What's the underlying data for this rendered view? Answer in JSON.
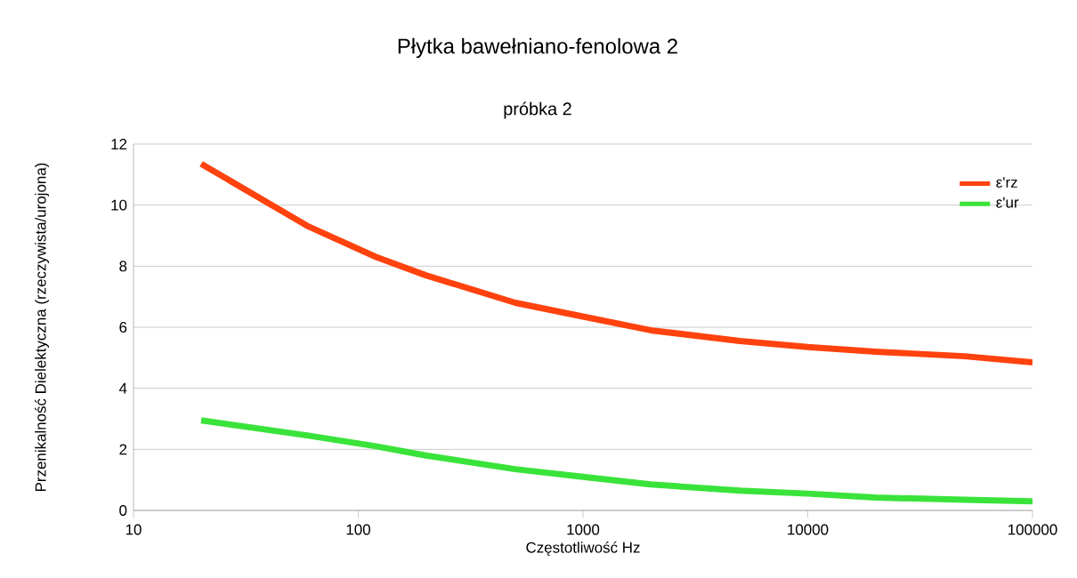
{
  "chart_data": {
    "type": "line",
    "title": "Płytka bawełniano-fenolowa 2",
    "subtitle": "próbka 2",
    "xlabel": "Częstotliwość Hz",
    "ylabel": "Przenikalność Dielektyczna (rzeczywista/urojona)",
    "x": [
      20,
      60,
      120,
      200,
      500,
      1000,
      2000,
      5000,
      10000,
      20000,
      50000,
      100000
    ],
    "series": [
      {
        "name": "ε'rz",
        "color": "#ff420e",
        "values": [
          11.35,
          9.3,
          8.3,
          7.7,
          6.8,
          6.35,
          5.9,
          5.55,
          5.35,
          5.2,
          5.05,
          4.85
        ]
      },
      {
        "name": "ε'ur",
        "color": "#3ae33a",
        "values": [
          2.95,
          2.45,
          2.1,
          1.8,
          1.35,
          1.1,
          0.85,
          0.65,
          0.55,
          0.42,
          0.35,
          0.3
        ]
      }
    ],
    "log": "x",
    "xlim": [
      10,
      100000
    ],
    "xticks": [
      10,
      100,
      1000,
      10000,
      100000
    ],
    "ylim": [
      0,
      12
    ],
    "yticks": [
      0,
      2,
      4,
      6,
      8,
      10,
      12
    ],
    "grid": "y",
    "legend": "top right",
    "marker": "none",
    "line_style": "solid"
  }
}
